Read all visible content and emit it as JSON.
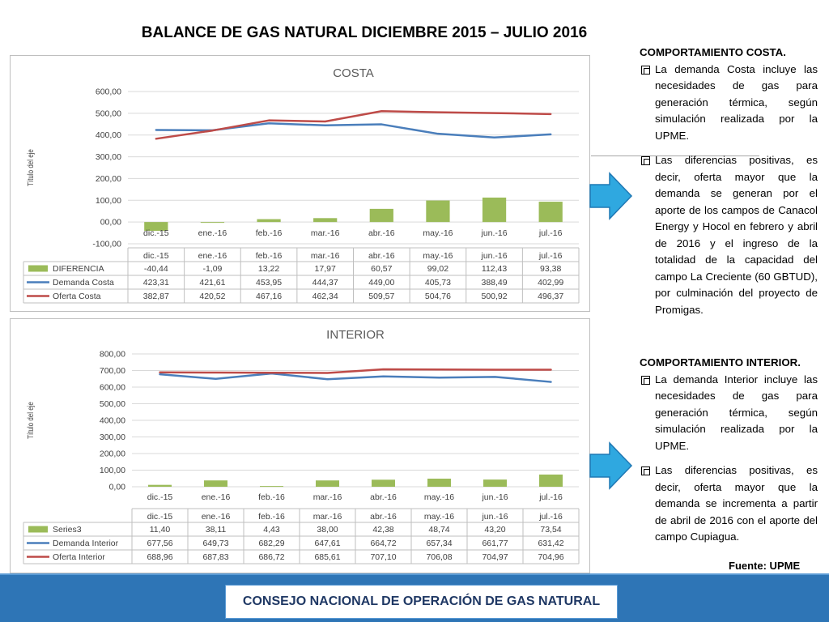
{
  "page": {
    "title": "BALANCE DE GAS NATURAL DICIEMBRE 2015 – JULIO 2016",
    "source": "Fuente: UPME",
    "footer": "CONSEJO NACIONAL DE OPERACIÓN DE GAS NATURAL"
  },
  "colors": {
    "demand": "#4a7ebb",
    "supply": "#be4b48",
    "bars": "#9bbb59",
    "arrow": "#2fa8e0",
    "footer": "#2e75b6"
  },
  "icons": {
    "arrow": "arrow-right-icon",
    "bullet": "checkbox-bullet-icon"
  },
  "sidebar": {
    "costa": {
      "heading": "COMPORTAMIENTO COSTA.",
      "bullets": [
        "La demanda Costa incluye las necesidades de gas para generación térmica, según simulación realizada por la UPME.",
        "Las diferencias positivas, es decir, oferta mayor que la demanda se generan por el aporte de los campos de Canacol Energy y Hocol en febrero y abril de 2016 y el ingreso de la totalidad de la capacidad del campo La Creciente (60 GBTUD), por culminación del proyecto de Promigas."
      ]
    },
    "interior": {
      "heading": "COMPORTAMIENTO INTERIOR.",
      "bullets": [
        "La demanda Interior incluye las necesidades de gas para generación térmica, según simulación realizada por la UPME.",
        "Las diferencias positivas, es decir, oferta mayor que la demanda se incrementa a partir de abril de 2016 con el aporte del campo Cupiagua."
      ]
    }
  },
  "chart_data": [
    {
      "type": "line",
      "title": "COSTA",
      "ylabel": "Título del eje",
      "xlabel": "",
      "ylim": [
        -100,
        600
      ],
      "yticks": [
        "600,00",
        "500,00",
        "400,00",
        "300,00",
        "200,00",
        "100,00",
        "00,00",
        "-100,00"
      ],
      "categories": [
        "dic.-15",
        "ene.-16",
        "feb.-16",
        "mar.-16",
        "abr.-16",
        "may.-16",
        "jun.-16",
        "jul.-16"
      ],
      "grid": true,
      "legend": "data-table",
      "series": [
        {
          "name": "DIFERENCIA",
          "kind": "bar",
          "color": "#9bbb59",
          "values": [
            -40.44,
            -1.09,
            13.22,
            17.97,
            60.57,
            99.02,
            112.43,
            93.38
          ],
          "labels": [
            "-40,44",
            "-1,09",
            "13,22",
            "17,97",
            "60,57",
            "99,02",
            "112,43",
            "93,38"
          ]
        },
        {
          "name": "Demanda Costa",
          "kind": "line",
          "color": "#4a7ebb",
          "values": [
            423.31,
            421.61,
            453.95,
            444.37,
            449.0,
            405.73,
            388.49,
            402.99
          ],
          "labels": [
            "423,31",
            "421,61",
            "453,95",
            "444,37",
            "449,00",
            "405,73",
            "388,49",
            "402,99"
          ]
        },
        {
          "name": "Oferta Costa",
          "kind": "line",
          "color": "#be4b48",
          "values": [
            382.87,
            420.52,
            467.16,
            462.34,
            509.57,
            504.76,
            500.92,
            496.37
          ],
          "labels": [
            "382,87",
            "420,52",
            "467,16",
            "462,34",
            "509,57",
            "504,76",
            "500,92",
            "496,37"
          ]
        }
      ]
    },
    {
      "type": "line",
      "title": "INTERIOR",
      "ylabel": "Título del eje",
      "xlabel": "",
      "ylim": [
        0,
        800
      ],
      "yticks": [
        "800,00",
        "700,00",
        "600,00",
        "500,00",
        "400,00",
        "300,00",
        "200,00",
        "100,00",
        "0,00"
      ],
      "categories": [
        "dic.-15",
        "ene.-16",
        "feb.-16",
        "mar.-16",
        "abr.-16",
        "may.-16",
        "jun.-16",
        "jul.-16"
      ],
      "grid": true,
      "legend": "data-table",
      "series": [
        {
          "name": "Series3",
          "kind": "bar",
          "color": "#9bbb59",
          "values": [
            11.4,
            38.11,
            4.43,
            38.0,
            42.38,
            48.74,
            43.2,
            73.54
          ],
          "labels": [
            "11,40",
            "38,11",
            "4,43",
            "38,00",
            "42,38",
            "48,74",
            "43,20",
            "73,54"
          ]
        },
        {
          "name": "Demanda Interior",
          "kind": "line",
          "color": "#4a7ebb",
          "values": [
            677.56,
            649.73,
            682.29,
            647.61,
            664.72,
            657.34,
            661.77,
            631.42
          ],
          "labels": [
            "677,56",
            "649,73",
            "682,29",
            "647,61",
            "664,72",
            "657,34",
            "661,77",
            "631,42"
          ]
        },
        {
          "name": "Oferta Interior",
          "kind": "line",
          "color": "#be4b48",
          "values": [
            688.96,
            687.83,
            686.72,
            685.61,
            707.1,
            706.08,
            704.97,
            704.96
          ],
          "labels": [
            "688,96",
            "687,83",
            "686,72",
            "685,61",
            "707,10",
            "706,08",
            "704,97",
            "704,96"
          ]
        }
      ]
    }
  ]
}
